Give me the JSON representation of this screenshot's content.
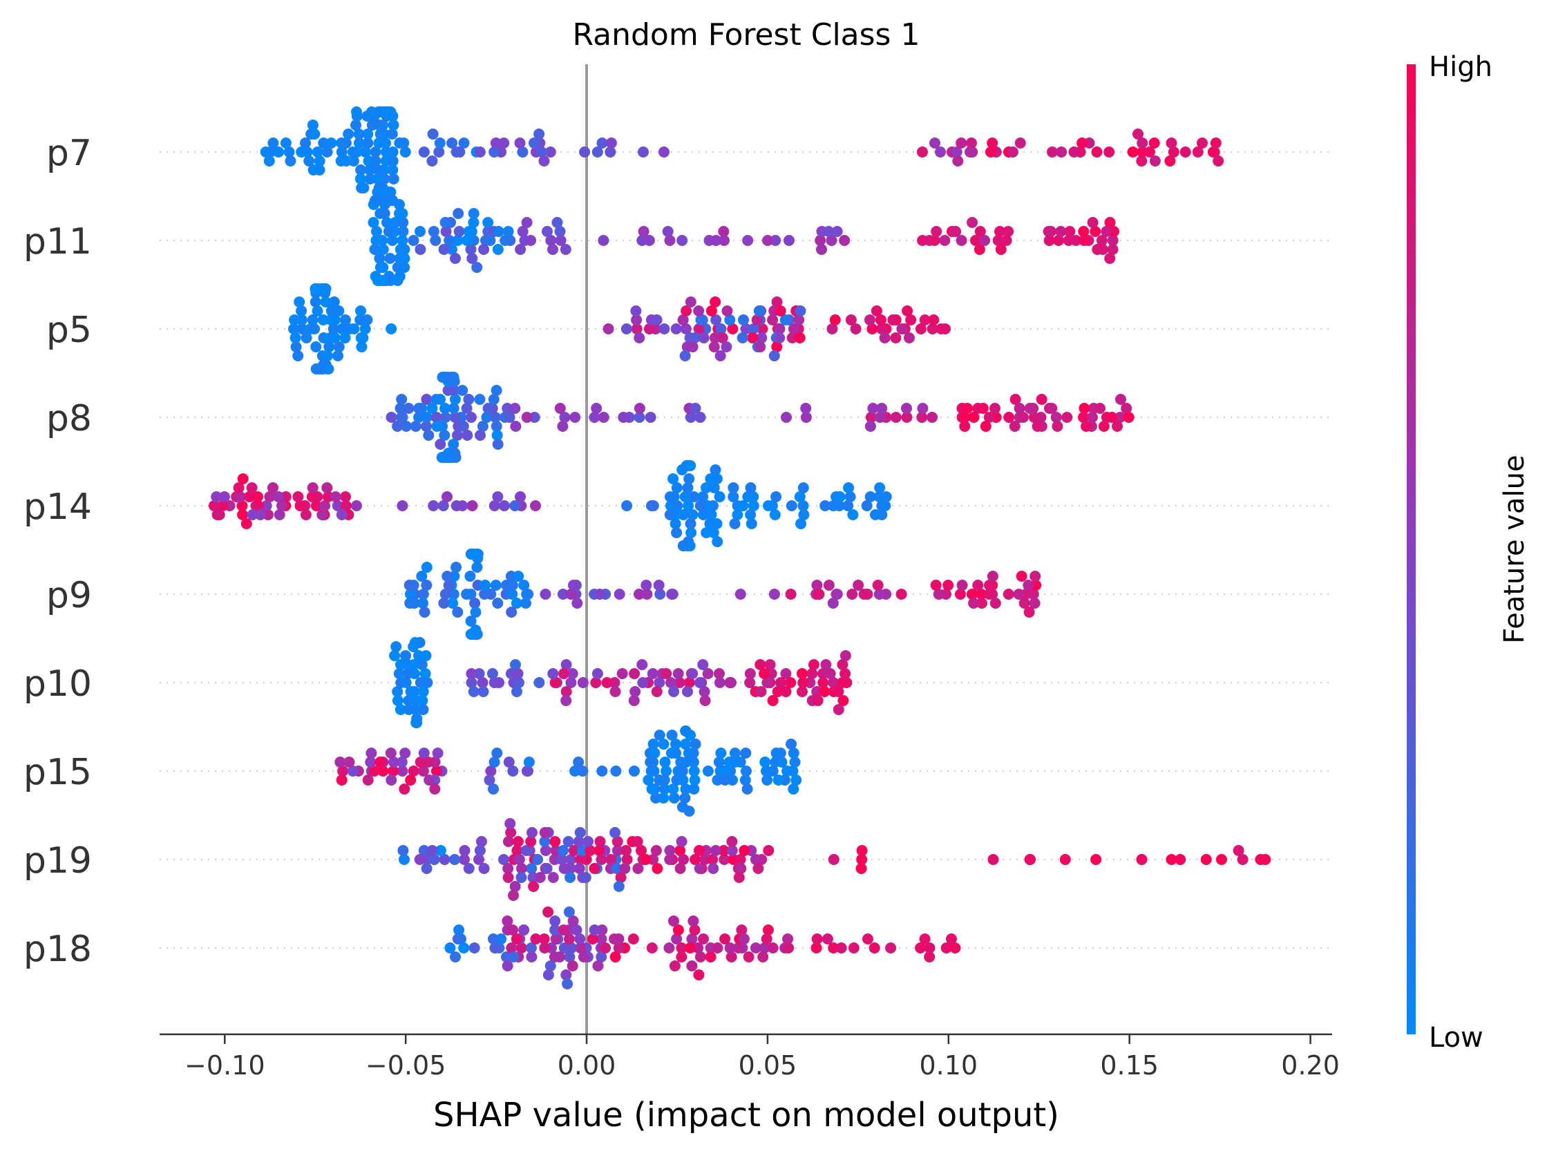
{
  "chart_data": {
    "type": "scatter",
    "title": "Random Forest Class 1",
    "xlabel": "SHAP value (impact on model output)",
    "xlim": [
      -0.118,
      0.206
    ],
    "xticks": [
      -0.1,
      -0.05,
      0.0,
      0.05,
      0.1,
      0.15,
      0.2
    ],
    "xtick_labels": [
      "−0.10",
      "−0.05",
      "0.00",
      "0.05",
      "0.10",
      "0.15",
      "0.20"
    ],
    "colorbar": {
      "label": "Feature value",
      "high_label": "High",
      "low_label": "Low",
      "low_color": "#008bfb",
      "mid_color": "#8a3ec7",
      "high_color": "#ff0052"
    },
    "zero_line_color": "#999999",
    "features": [
      {
        "name": "p7",
        "clusters": [
          {
            "min": -0.091,
            "max": -0.07,
            "n": 22,
            "cmin": 0.0,
            "cmax": 0.1
          },
          {
            "min": -0.068,
            "max": -0.05,
            "n": 55,
            "cmin": 0.0,
            "cmax": 0.1
          },
          {
            "min": -0.058,
            "max": -0.053,
            "n": 30,
            "cmin": 0.0,
            "cmax": 0.1
          },
          {
            "min": -0.048,
            "max": -0.03,
            "n": 10,
            "cmin": 0.0,
            "cmax": 0.3
          },
          {
            "min": -0.03,
            "max": -0.008,
            "n": 14,
            "cmin": 0.2,
            "cmax": 0.5
          },
          {
            "min": -0.003,
            "max": 0.036,
            "n": 7,
            "cmin": 0.3,
            "cmax": 0.5
          },
          {
            "min": 0.092,
            "max": 0.11,
            "n": 10,
            "cmin": 0.5,
            "cmax": 0.85
          },
          {
            "min": 0.11,
            "max": 0.175,
            "n": 32,
            "cmin": 0.75,
            "cmax": 1.0
          }
        ]
      },
      {
        "name": "p11",
        "clusters": [
          {
            "min": -0.059,
            "max": -0.05,
            "n": 50,
            "cmin": 0.0,
            "cmax": 0.1
          },
          {
            "min": -0.048,
            "max": -0.02,
            "n": 35,
            "cmin": 0.0,
            "cmax": 0.4
          },
          {
            "min": -0.02,
            "max": -0.004,
            "n": 12,
            "cmin": 0.3,
            "cmax": 0.5
          },
          {
            "min": 0.004,
            "max": 0.072,
            "n": 22,
            "cmin": 0.4,
            "cmax": 0.65
          },
          {
            "min": 0.089,
            "max": 0.117,
            "n": 18,
            "cmin": 0.65,
            "cmax": 0.95
          },
          {
            "min": 0.126,
            "max": 0.147,
            "n": 22,
            "cmin": 0.75,
            "cmax": 1.0
          }
        ]
      },
      {
        "name": "p5",
        "clusters": [
          {
            "min": -0.081,
            "max": -0.06,
            "n": 40,
            "cmin": 0.0,
            "cmax": 0.1
          },
          {
            "min": -0.075,
            "max": -0.071,
            "n": 25,
            "cmin": 0.0,
            "cmax": 0.1
          },
          {
            "min": -0.054,
            "max": -0.054,
            "n": 1,
            "cmin": 0.0,
            "cmax": 0.0
          },
          {
            "min": 0.005,
            "max": 0.027,
            "n": 12,
            "cmin": 0.3,
            "cmax": 0.8
          },
          {
            "min": 0.026,
            "max": 0.06,
            "n": 60,
            "cmin": 0.1,
            "cmax": 1.0
          },
          {
            "min": 0.066,
            "max": 0.101,
            "n": 25,
            "cmin": 0.7,
            "cmax": 1.0
          }
        ]
      },
      {
        "name": "p8",
        "clusters": [
          {
            "min": -0.054,
            "max": -0.02,
            "n": 55,
            "cmin": 0.0,
            "cmax": 0.4
          },
          {
            "min": -0.04,
            "max": -0.036,
            "n": 30,
            "cmin": 0.0,
            "cmax": 0.15
          },
          {
            "min": -0.02,
            "max": 0.033,
            "n": 20,
            "cmin": 0.3,
            "cmax": 0.65
          },
          {
            "min": 0.053,
            "max": 0.063,
            "n": 3,
            "cmin": 0.5,
            "cmax": 0.6
          },
          {
            "min": 0.078,
            "max": 0.097,
            "n": 12,
            "cmin": 0.55,
            "cmax": 0.85
          },
          {
            "min": 0.103,
            "max": 0.15,
            "n": 45,
            "cmin": 0.7,
            "cmax": 1.0
          }
        ]
      },
      {
        "name": "p14",
        "clusters": [
          {
            "min": -0.103,
            "max": -0.062,
            "n": 50,
            "cmin": 0.45,
            "cmax": 1.0
          },
          {
            "min": -0.054,
            "max": -0.01,
            "n": 14,
            "cmin": 0.2,
            "cmax": 0.6
          },
          {
            "min": 0.005,
            "max": 0.02,
            "n": 3,
            "cmin": 0.1,
            "cmax": 0.2
          },
          {
            "min": 0.023,
            "max": 0.038,
            "n": 45,
            "cmin": 0.0,
            "cmax": 0.12
          },
          {
            "min": 0.04,
            "max": 0.083,
            "n": 40,
            "cmin": 0.0,
            "cmax": 0.12
          }
        ]
      },
      {
        "name": "p9",
        "clusters": [
          {
            "min": -0.049,
            "max": -0.015,
            "n": 45,
            "cmin": 0.0,
            "cmax": 0.25
          },
          {
            "min": -0.032,
            "max": -0.03,
            "n": 25,
            "cmin": 0.0,
            "cmax": 0.1
          },
          {
            "min": -0.015,
            "max": 0.026,
            "n": 18,
            "cmin": 0.3,
            "cmax": 0.6
          },
          {
            "min": 0.04,
            "max": 0.09,
            "n": 18,
            "cmin": 0.5,
            "cmax": 0.9
          },
          {
            "min": 0.096,
            "max": 0.128,
            "n": 28,
            "cmin": 0.7,
            "cmax": 1.0
          }
        ]
      },
      {
        "name": "p10",
        "clusters": [
          {
            "min": -0.054,
            "max": -0.044,
            "n": 35,
            "cmin": 0.0,
            "cmax": 0.1
          },
          {
            "min": -0.034,
            "max": -0.01,
            "n": 16,
            "cmin": 0.2,
            "cmax": 0.5
          },
          {
            "min": -0.01,
            "max": 0.04,
            "n": 45,
            "cmin": 0.4,
            "cmax": 0.9
          },
          {
            "min": 0.045,
            "max": 0.072,
            "n": 40,
            "cmin": 0.7,
            "cmax": 1.0
          }
        ]
      },
      {
        "name": "p15",
        "clusters": [
          {
            "min": -0.069,
            "max": -0.04,
            "n": 35,
            "cmin": 0.4,
            "cmax": 1.0
          },
          {
            "min": -0.027,
            "max": -0.013,
            "n": 10,
            "cmin": 0.05,
            "cmax": 0.5
          },
          {
            "min": -0.004,
            "max": 0.014,
            "n": 6,
            "cmin": 0.0,
            "cmax": 0.15
          },
          {
            "min": 0.017,
            "max": 0.03,
            "n": 45,
            "cmin": 0.0,
            "cmax": 0.1
          },
          {
            "min": 0.03,
            "max": 0.058,
            "n": 35,
            "cmin": 0.0,
            "cmax": 0.12
          }
        ]
      },
      {
        "name": "p19",
        "clusters": [
          {
            "min": -0.054,
            "max": -0.025,
            "n": 18,
            "cmin": 0.0,
            "cmax": 0.5
          },
          {
            "min": -0.025,
            "max": 0.012,
            "n": 70,
            "cmin": 0.1,
            "cmax": 0.95
          },
          {
            "min": 0.012,
            "max": 0.052,
            "n": 40,
            "cmin": 0.55,
            "cmax": 1.0
          },
          {
            "min": 0.065,
            "max": 0.077,
            "n": 4,
            "cmin": 0.8,
            "cmax": 1.0
          },
          {
            "min": 0.112,
            "max": 0.191,
            "n": 14,
            "cmin": 0.85,
            "cmax": 1.0
          }
        ]
      },
      {
        "name": "p18",
        "clusters": [
          {
            "min": -0.038,
            "max": -0.022,
            "n": 12,
            "cmin": 0.0,
            "cmax": 0.3
          },
          {
            "min": -0.022,
            "max": 0.005,
            "n": 50,
            "cmin": 0.2,
            "cmax": 0.9
          },
          {
            "min": 0.005,
            "max": 0.056,
            "n": 45,
            "cmin": 0.6,
            "cmax": 1.0
          },
          {
            "min": 0.063,
            "max": 0.103,
            "n": 16,
            "cmin": 0.75,
            "cmax": 1.0
          }
        ]
      }
    ]
  }
}
